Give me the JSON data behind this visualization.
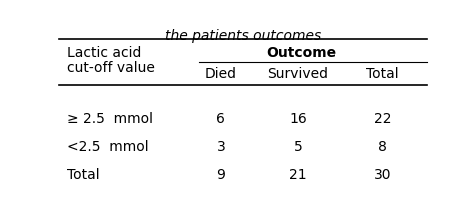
{
  "title_partial": "the patients outcomes",
  "col_header_group": "Outcome",
  "col_headers": [
    "Died",
    "Survived",
    "Total"
  ],
  "row_label_header_line1": "Lactic acid",
  "row_label_header_line2": "cut-off value",
  "row_keys": [
    "≥ 2.5  mmol",
    "<2.5  mmol",
    "Total"
  ],
  "row_values": [
    [
      "6",
      "16",
      "22"
    ],
    [
      "3",
      "5",
      "8"
    ],
    [
      "9",
      "21",
      "30"
    ]
  ],
  "background_color": "#ffffff",
  "font_size": 10
}
